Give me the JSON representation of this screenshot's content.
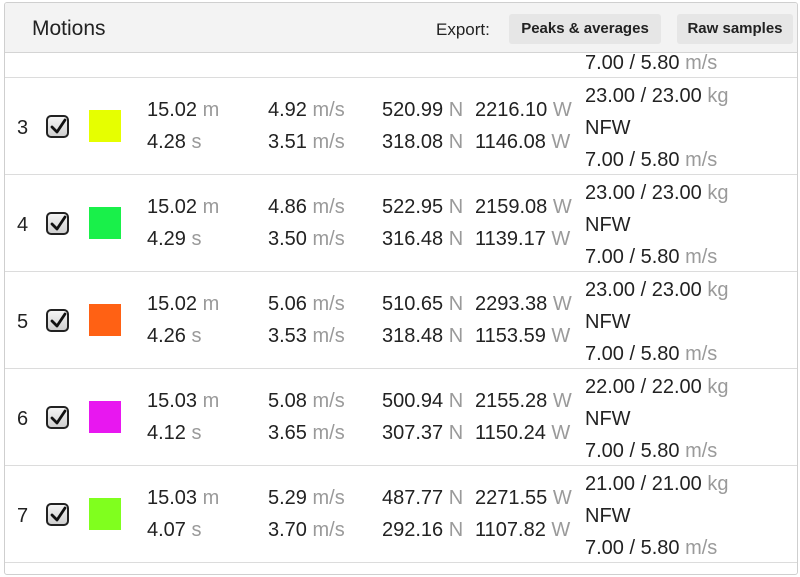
{
  "header": {
    "title": "Motions",
    "export_label": "Export:",
    "peaks_button": "Peaks & averages",
    "raw_button": "Raw samples"
  },
  "partial_row": {
    "speed": "7.00 / 5.80",
    "speed_unit": "m/s"
  },
  "rows": [
    {
      "index": "3",
      "checked": true,
      "color": "#e6ff00",
      "distance": "15.02",
      "distance_unit": "m",
      "time": "4.28",
      "time_unit": "s",
      "vel_max": "4.92",
      "vel_avg": "3.51",
      "vel_unit": "m/s",
      "force_max": "520.99",
      "force_avg": "318.08",
      "force_unit": "N",
      "power_max": "2216.10",
      "power_avg": "1146.08",
      "power_unit": "W",
      "load": "23.00 / 23.00",
      "load_unit": "kg",
      "mode": "NFW",
      "speed": "7.00 / 5.80",
      "speed_unit": "m/s"
    },
    {
      "index": "4",
      "checked": true,
      "color": "#19f04a",
      "distance": "15.02",
      "distance_unit": "m",
      "time": "4.29",
      "time_unit": "s",
      "vel_max": "4.86",
      "vel_avg": "3.50",
      "vel_unit": "m/s",
      "force_max": "522.95",
      "force_avg": "316.48",
      "force_unit": "N",
      "power_max": "2159.08",
      "power_avg": "1139.17",
      "power_unit": "W",
      "load": "23.00 / 23.00",
      "load_unit": "kg",
      "mode": "NFW",
      "speed": "7.00 / 5.80",
      "speed_unit": "m/s"
    },
    {
      "index": "5",
      "checked": true,
      "color": "#ff6114",
      "distance": "15.02",
      "distance_unit": "m",
      "time": "4.26",
      "time_unit": "s",
      "vel_max": "5.06",
      "vel_avg": "3.53",
      "vel_unit": "m/s",
      "force_max": "510.65",
      "force_avg": "318.48",
      "force_unit": "N",
      "power_max": "2293.38",
      "power_avg": "1153.59",
      "power_unit": "W",
      "load": "23.00 / 23.00",
      "load_unit": "kg",
      "mode": "NFW",
      "speed": "7.00 / 5.80",
      "speed_unit": "m/s"
    },
    {
      "index": "6",
      "checked": true,
      "color": "#e817f0",
      "distance": "15.03",
      "distance_unit": "m",
      "time": "4.12",
      "time_unit": "s",
      "vel_max": "5.08",
      "vel_avg": "3.65",
      "vel_unit": "m/s",
      "force_max": "500.94",
      "force_avg": "307.37",
      "force_unit": "N",
      "power_max": "2155.28",
      "power_avg": "1150.24",
      "power_unit": "W",
      "load": "22.00 / 22.00",
      "load_unit": "kg",
      "mode": "NFW",
      "speed": "7.00 / 5.80",
      "speed_unit": "m/s"
    },
    {
      "index": "7",
      "checked": true,
      "color": "#80ff1e",
      "distance": "15.03",
      "distance_unit": "m",
      "time": "4.07",
      "time_unit": "s",
      "vel_max": "5.29",
      "vel_avg": "3.70",
      "vel_unit": "m/s",
      "force_max": "487.77",
      "force_avg": "292.16",
      "force_unit": "N",
      "power_max": "2271.55",
      "power_avg": "1107.82",
      "power_unit": "W",
      "load": "21.00 / 21.00",
      "load_unit": "kg",
      "mode": "NFW",
      "speed": "7.00 / 5.80",
      "speed_unit": "m/s"
    }
  ]
}
